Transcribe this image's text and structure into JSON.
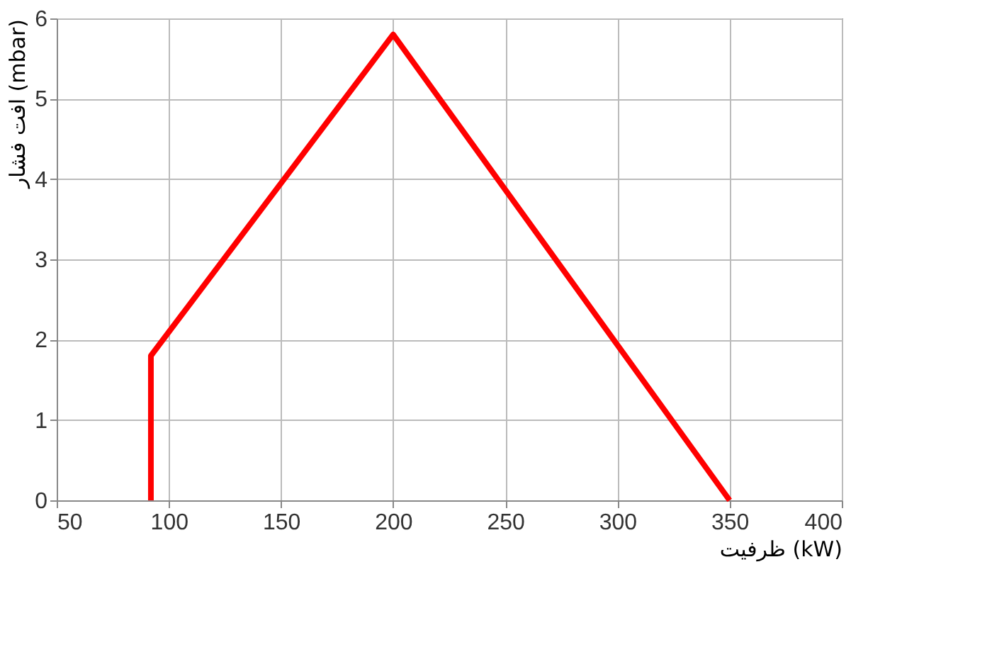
{
  "chart_data": {
    "type": "line",
    "xlabel": "ظرفیت (kW)",
    "ylabel": "افت فشار (mbar)",
    "x": [
      92,
      92,
      200,
      350
    ],
    "series": [
      {
        "color": "#ff0000",
        "values": [
          0,
          1.8,
          5.8,
          0
        ]
      }
    ],
    "xlim": [
      50,
      400
    ],
    "xticks": [
      50,
      100,
      150,
      200,
      250,
      300,
      350,
      400
    ],
    "ylim": [
      0,
      6
    ],
    "yticks": [
      0,
      1,
      2,
      3,
      4,
      5,
      6
    ],
    "grid": true,
    "marker": "none",
    "line_style": "solid"
  }
}
